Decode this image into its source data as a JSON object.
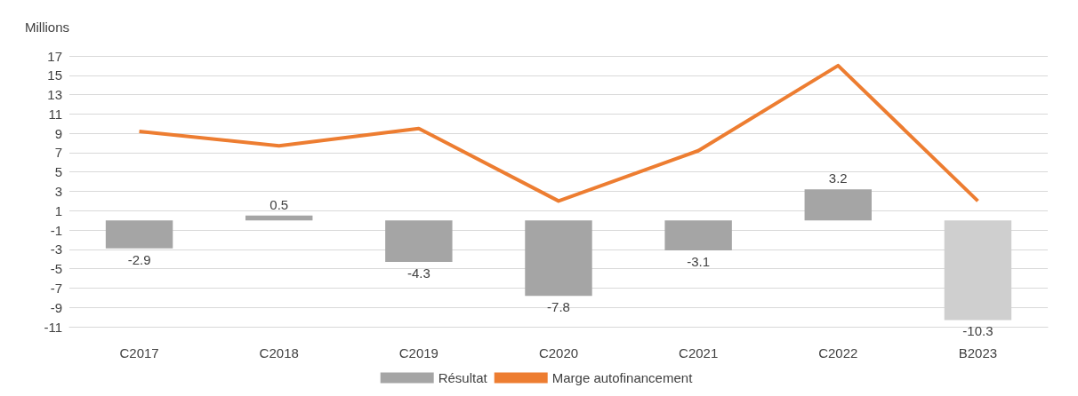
{
  "chart_data": {
    "type": "bar",
    "ylabel": "Millions",
    "categories": [
      "C2017",
      "C2018",
      "C2019",
      "C2020",
      "C2021",
      "C2022",
      "B2023"
    ],
    "series": [
      {
        "name": "Résultat",
        "color": "#a5a5a5",
        "colors": [
          "#a5a5a5",
          "#a5a5a5",
          "#a5a5a5",
          "#a5a5a5",
          "#a5a5a5",
          "#a5a5a5",
          "#cfcfcf"
        ],
        "values": [
          -2.9,
          0.5,
          -4.3,
          -7.8,
          -3.1,
          3.2,
          -10.3
        ],
        "value_labels": [
          "-2.9",
          "0.5",
          "-4.3",
          "-7.8",
          "-3.1",
          "3.2",
          "-10.3"
        ]
      },
      {
        "name": "Marge autofinancement",
        "type": "line",
        "color": "#ed7d31",
        "values": [
          9.2,
          7.7,
          9.5,
          2.0,
          7.2,
          16.0,
          2.0
        ]
      }
    ],
    "ylim": [
      -11,
      17
    ],
    "yticks": [
      -11,
      -9,
      -7,
      -5,
      -3,
      -1,
      1,
      3,
      5,
      7,
      9,
      11,
      13,
      15,
      17
    ],
    "grid": "y",
    "legend": "bottom",
    "marker": "none"
  }
}
